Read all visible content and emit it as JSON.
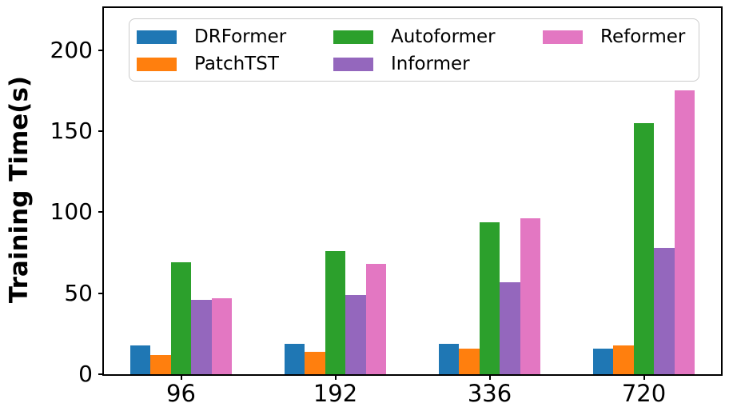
{
  "figure": {
    "background_color": "#ffffff",
    "axis_color": "#000000"
  },
  "chart_data": {
    "type": "bar",
    "title": "",
    "xlabel": "",
    "ylabel": "Training Time(s)",
    "categories": [
      "96",
      "192",
      "336",
      "720"
    ],
    "series": [
      {
        "name": "DRFormer",
        "color": "#1f77b4",
        "values": [
          18,
          19,
          19,
          16
        ]
      },
      {
        "name": "PatchTST",
        "color": "#ff7f0e",
        "values": [
          12,
          14,
          16,
          18
        ]
      },
      {
        "name": "Autoformer",
        "color": "#2ca02c",
        "values": [
          69,
          76,
          94,
          155
        ]
      },
      {
        "name": "Informer",
        "color": "#9467bd",
        "values": [
          46,
          49,
          57,
          78
        ]
      },
      {
        "name": "Reformer",
        "color": "#e377c2",
        "values": [
          47,
          68,
          96,
          175
        ]
      }
    ],
    "yticks": [
      0,
      50,
      100,
      150,
      200
    ],
    "ylim": [
      0,
      226
    ],
    "grid": false,
    "legend": {
      "position": "upper-left-inside",
      "columns": 3,
      "order": [
        "DRFormer",
        "PatchTST",
        "Autoformer",
        "Informer",
        "Reformer"
      ]
    }
  }
}
